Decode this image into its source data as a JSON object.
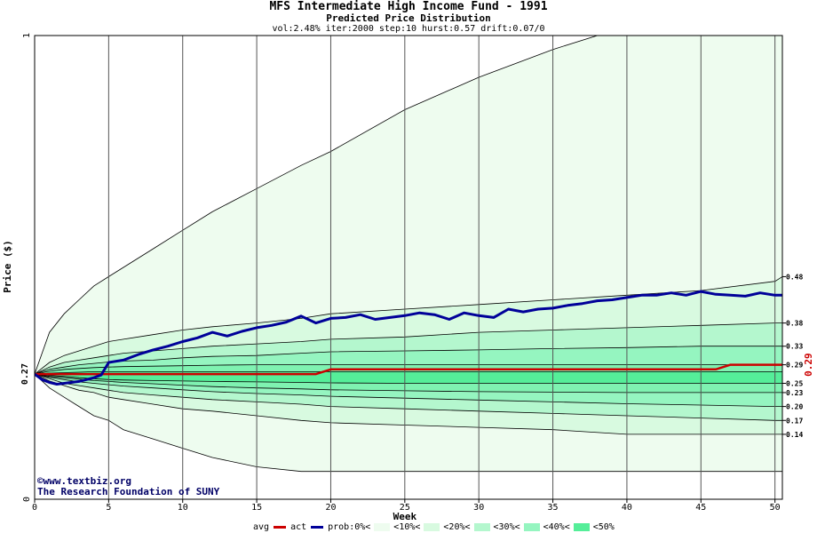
{
  "chart_data": {
    "type": "line",
    "title": "MFS Intermediate High Income Fund - 1991",
    "subtitle": "Predicted Price Distribution",
    "params": "vol:2.48% iter:2000 step:10 hurst:0.57 drift:0.07/0",
    "xlabel": "Week",
    "ylabel": "Price ($)",
    "xlim": [
      0,
      50.5
    ],
    "ylim": [
      0,
      1
    ],
    "x_ticks": [
      "0",
      "5",
      "10",
      "15",
      "20",
      "25",
      "30",
      "35",
      "40",
      "45",
      "50"
    ],
    "y_ticks": [
      "0",
      "1"
    ],
    "start_price_label": "0.27",
    "avg_end_label": "0.29",
    "band_end_labels": [
      "0.48",
      "0.38",
      "0.33",
      "0.29",
      "0.25",
      "0.23",
      "0.20",
      "0.17",
      "0.14"
    ],
    "band_bounds": {
      "x": [
        0,
        1,
        2,
        3,
        4,
        5,
        6,
        8,
        10,
        12,
        15,
        18,
        20,
        25,
        30,
        35,
        40,
        45,
        50,
        50.5
      ],
      "outer_upper": [
        0.27,
        0.36,
        0.4,
        0.43,
        0.46,
        0.48,
        0.5,
        0.54,
        0.58,
        0.62,
        0.67,
        0.72,
        0.75,
        0.84,
        0.91,
        0.97,
        1.02,
        1.07,
        1.12,
        1.12
      ],
      "outer_lower": [
        0.27,
        0.24,
        0.22,
        0.2,
        0.18,
        0.17,
        0.15,
        0.13,
        0.11,
        0.09,
        0.07,
        0.06,
        0.06,
        0.06,
        0.06,
        0.06,
        0.06,
        0.06,
        0.06,
        0.06
      ],
      "p10_upper": [
        0.27,
        0.295,
        0.31,
        0.32,
        0.33,
        0.34,
        0.345,
        0.355,
        0.365,
        0.372,
        0.38,
        0.39,
        0.4,
        0.41,
        0.42,
        0.43,
        0.44,
        0.45,
        0.47,
        0.48
      ],
      "p10_lower": [
        0.27,
        0.255,
        0.245,
        0.235,
        0.23,
        0.22,
        0.215,
        0.205,
        0.195,
        0.19,
        0.18,
        0.17,
        0.165,
        0.16,
        0.155,
        0.15,
        0.14,
        0.14,
        0.14,
        0.14
      ],
      "p20_upper": [
        0.27,
        0.285,
        0.295,
        0.3,
        0.305,
        0.31,
        0.315,
        0.32,
        0.325,
        0.33,
        0.335,
        0.34,
        0.345,
        0.35,
        0.36,
        0.365,
        0.37,
        0.375,
        0.38,
        0.38
      ],
      "p20_lower": [
        0.27,
        0.26,
        0.25,
        0.245,
        0.24,
        0.235,
        0.23,
        0.225,
        0.22,
        0.215,
        0.21,
        0.205,
        0.2,
        0.195,
        0.19,
        0.185,
        0.18,
        0.175,
        0.17,
        0.17
      ],
      "p30_upper": [
        0.27,
        0.28,
        0.285,
        0.29,
        0.293,
        0.296,
        0.298,
        0.3,
        0.305,
        0.308,
        0.31,
        0.315,
        0.318,
        0.32,
        0.322,
        0.325,
        0.327,
        0.33,
        0.33,
        0.33
      ],
      "p30_lower": [
        0.27,
        0.263,
        0.258,
        0.253,
        0.25,
        0.247,
        0.244,
        0.24,
        0.236,
        0.232,
        0.228,
        0.225,
        0.222,
        0.218,
        0.214,
        0.21,
        0.206,
        0.203,
        0.2,
        0.2
      ],
      "p40_upper": [
        0.27,
        0.276,
        0.28,
        0.282,
        0.284,
        0.285,
        0.286,
        0.287,
        0.288,
        0.289,
        0.29,
        0.29,
        0.29,
        0.29,
        0.29,
        0.29,
        0.29,
        0.29,
        0.29,
        0.29
      ],
      "p40_lower": [
        0.27,
        0.265,
        0.262,
        0.259,
        0.256,
        0.254,
        0.252,
        0.249,
        0.246,
        0.243,
        0.24,
        0.238,
        0.236,
        0.234,
        0.232,
        0.231,
        0.23,
        0.23,
        0.23,
        0.23
      ],
      "p50_upper": [
        0.27,
        0.272,
        0.273,
        0.274,
        0.275,
        0.275,
        0.275,
        0.275,
        0.275,
        0.275,
        0.275,
        0.275,
        0.275,
        0.275,
        0.275,
        0.275,
        0.275,
        0.275,
        0.275,
        0.275
      ],
      "p50_lower": [
        0.27,
        0.267,
        0.265,
        0.262,
        0.26,
        0.258,
        0.257,
        0.256,
        0.255,
        0.254,
        0.253,
        0.252,
        0.251,
        0.25,
        0.25,
        0.25,
        0.25,
        0.25,
        0.25,
        0.25
      ]
    },
    "series": [
      {
        "name": "avg",
        "color": "#cc0000",
        "x": [
          0,
          5,
          10,
          15,
          19,
          20,
          25,
          30,
          35,
          40,
          46,
          47,
          50,
          50.5
        ],
        "values": [
          0.27,
          0.27,
          0.27,
          0.27,
          0.27,
          0.28,
          0.28,
          0.28,
          0.28,
          0.28,
          0.28,
          0.29,
          0.29,
          0.29
        ]
      },
      {
        "name": "act",
        "color": "#000099",
        "x": [
          0,
          0.5,
          1,
          1.5,
          2,
          3,
          4,
          4.5,
          5,
          6,
          7,
          8,
          9,
          10,
          11,
          12,
          13,
          14,
          15,
          16,
          17,
          18,
          19,
          20,
          21,
          22,
          23,
          24,
          25,
          26,
          27,
          28,
          29,
          30,
          31,
          32,
          33,
          34,
          35,
          36,
          37,
          38,
          39,
          40,
          41,
          42,
          43,
          44,
          45,
          46,
          47,
          48,
          49,
          50,
          50.5
        ],
        "values": [
          0.27,
          0.258,
          0.252,
          0.248,
          0.25,
          0.254,
          0.262,
          0.268,
          0.295,
          0.3,
          0.312,
          0.322,
          0.33,
          0.34,
          0.348,
          0.36,
          0.352,
          0.362,
          0.37,
          0.375,
          0.382,
          0.395,
          0.38,
          0.39,
          0.392,
          0.398,
          0.388,
          0.392,
          0.396,
          0.402,
          0.398,
          0.388,
          0.402,
          0.396,
          0.392,
          0.41,
          0.404,
          0.41,
          0.412,
          0.418,
          0.422,
          0.428,
          0.43,
          0.435,
          0.44,
          0.44,
          0.445,
          0.44,
          0.448,
          0.442,
          0.44,
          0.438,
          0.445,
          0.44,
          0.44
        ]
      }
    ]
  },
  "credit": {
    "line1": "©www.textbiz.org",
    "line2": "The Research Foundation of SUNY"
  },
  "legend": {
    "avg": "avg",
    "act": "act",
    "prob": "prob:0%<",
    "p10": "<10%<",
    "p20": "<20%<",
    "p30": "<30%<",
    "p40": "<40%<",
    "p50": "<50%",
    "colors": {
      "outer": "#eefcef",
      "p10": "#d8fae0",
      "p20": "#b4f7ce",
      "p30": "#95f5c0",
      "p40": "#7ff2b1",
      "p50": "#55ee99",
      "avg": "#cc0000",
      "act": "#000099"
    }
  }
}
